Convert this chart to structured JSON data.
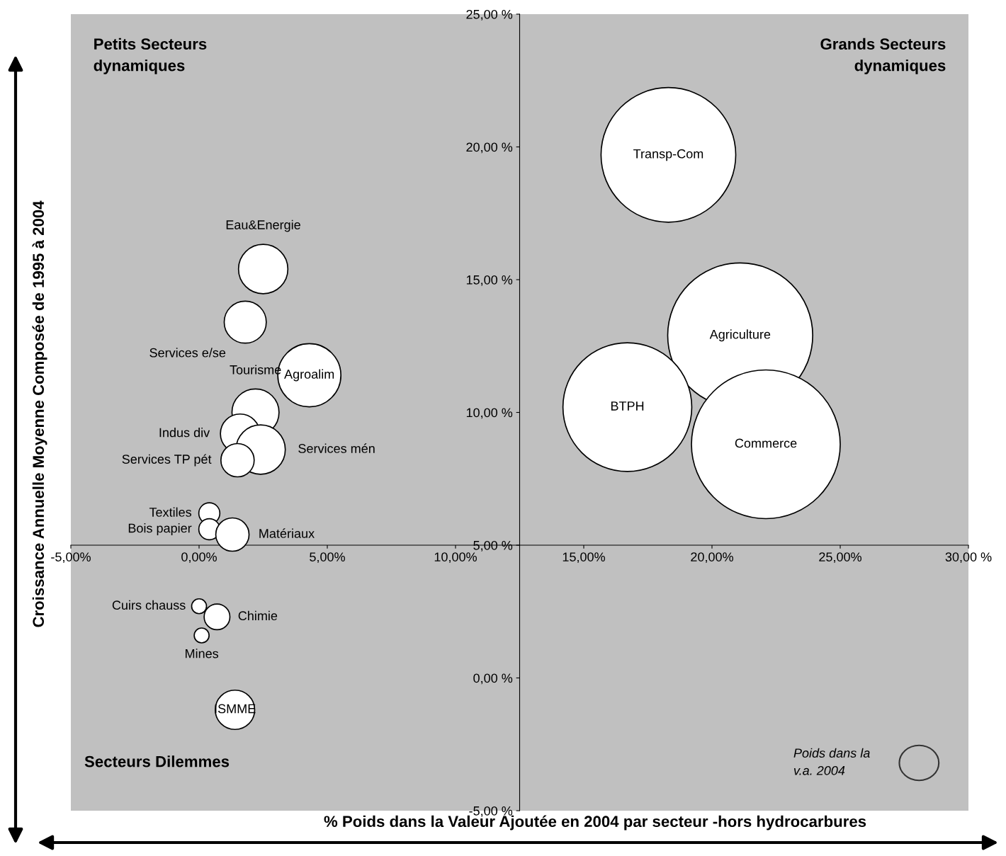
{
  "chart_data": {
    "type": "bubble",
    "xlabel": "% Poids dans la Valeur Ajoutée en 2004 par secteur -hors hydrocarbures",
    "ylabel": "Croissance Annuelle Moyenne Composée de 1995 à 2004",
    "x": [
      18.3,
      21.1,
      16.7,
      22.1,
      2.5,
      1.8,
      4.3,
      2.2,
      1.6,
      2.4,
      1.5,
      0.4,
      0.4,
      1.3,
      0.0,
      0.7,
      0.1,
      1.4
    ],
    "series": [
      {
        "color": "#ffffff",
        "values": [
          19.7,
          12.9,
          10.2,
          8.8,
          15.4,
          13.4,
          11.4,
          10.0,
          9.2,
          8.6,
          8.2,
          6.2,
          5.6,
          5.4,
          2.7,
          2.3,
          1.6,
          -1.2
        ],
        "sizes": [
          0.82,
          0.95,
          0.75,
          1,
          0.11,
          0.08,
          0.18,
          0.1,
          0.07,
          0.11,
          0.05,
          0.02,
          0.02,
          0.05,
          0.01,
          0.03,
          0.01,
          0.07
        ]
      }
    ],
    "xlim": [
      -5,
      30
    ],
    "ylim": [
      -5,
      25
    ],
    "xticks": [
      {
        "value": -5,
        "label": "-5,00%"
      },
      {
        "value": 0,
        "label": "0,00%"
      },
      {
        "value": 5,
        "label": "5,00%"
      },
      {
        "value": 10,
        "label": "10,00%"
      },
      {
        "value": 15,
        "label": "15,00%"
      },
      {
        "value": 20,
        "label": "20,00%"
      },
      {
        "value": 25,
        "label": "25,00%"
      },
      {
        "value": 30,
        "label": "30,00 %"
      }
    ],
    "yticks": [
      {
        "value": -5,
        "label": "-5,00 %"
      },
      {
        "value": 0,
        "label": "0,00 %"
      },
      {
        "value": 5,
        "label": "5,00 %"
      },
      {
        "value": 10,
        "label": "10,00 %"
      },
      {
        "value": 15,
        "label": "15,00 %"
      },
      {
        "value": 20,
        "label": "20,00 %"
      },
      {
        "value": 25,
        "label": "25,00 %"
      }
    ],
    "grid": false,
    "legend": false,
    "annotations": [
      {
        "text": "Transp-Com",
        "x": 18.3,
        "y": 19.7
      },
      {
        "text": "Agriculture",
        "x": 21.1,
        "y": 12.9
      },
      {
        "text": "BTPH",
        "x": 16.7,
        "y": 10.2
      },
      {
        "text": "Commerce",
        "x": 22.1,
        "y": 8.8
      },
      {
        "text": "Eau&Energie",
        "x": 2.5,
        "y": 15.4
      },
      {
        "text": "Services e/se",
        "x": 1.8,
        "y": 13.4
      },
      {
        "text": "Agroalim",
        "x": 4.3,
        "y": 11.4
      },
      {
        "text": "Tourisme",
        "x": 2.2,
        "y": 10.0
      },
      {
        "text": "Indus div",
        "x": 1.6,
        "y": 9.2
      },
      {
        "text": "Services mén",
        "x": 2.4,
        "y": 8.6
      },
      {
        "text": "Services TP pét",
        "x": 1.5,
        "y": 8.2
      },
      {
        "text": "Textiles",
        "x": 0.4,
        "y": 6.2
      },
      {
        "text": "Bois papier",
        "x": 0.4,
        "y": 5.6
      },
      {
        "text": "Matériaux",
        "x": 1.3,
        "y": 5.4
      },
      {
        "text": "Cuirs chauss",
        "x": 0.0,
        "y": 2.7
      },
      {
        "text": "Chimie",
        "x": 0.7,
        "y": 2.3
      },
      {
        "text": "Mines",
        "x": 0.1,
        "y": 1.6
      },
      {
        "text": "ISMME",
        "x": 1.4,
        "y": -1.2
      },
      "Petits Secteurs\ndynamiques",
      "Grands Secteurs\ndynamiques",
      "Secteurs Dilemmes",
      "Poids dans la\nv.a. 2004"
    ]
  }
}
